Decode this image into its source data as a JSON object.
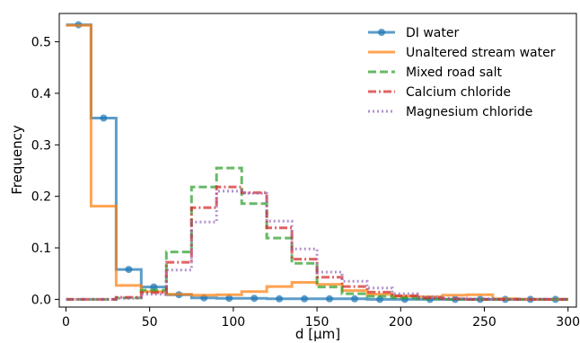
{
  "chart_data": {
    "type": "line",
    "title": "",
    "xlabel": "d [μm]",
    "ylabel": "Frequency",
    "xlim": [
      -4,
      305
    ],
    "ylim": [
      -0.015,
      0.555
    ],
    "xticks": [
      0,
      50,
      100,
      150,
      200,
      250,
      300
    ],
    "yticks": [
      0.0,
      0.1,
      0.2,
      0.3,
      0.4,
      0.5
    ],
    "grid": false,
    "legend_position": "top-right",
    "bin_edges": [
      0,
      15,
      30,
      45,
      60,
      75,
      90,
      105,
      120,
      135,
      150,
      165,
      180,
      195,
      210,
      225,
      240,
      255,
      270,
      285,
      300
    ],
    "bin_centers": [
      7.5,
      22.5,
      37.5,
      52.5,
      67.5,
      82.5,
      97.5,
      112.5,
      127.5,
      142.5,
      157.5,
      172.5,
      187.5,
      202.5,
      217.5,
      232.5,
      247.5,
      262.5,
      277.5,
      292.5
    ],
    "series": [
      {
        "name": "DI water",
        "color": "#1f77b4",
        "style": "solid-step-with-markers",
        "values": [
          0.533,
          0.352,
          0.058,
          0.024,
          0.009,
          0.003,
          0.002,
          0.002,
          0.001,
          0.001,
          0.001,
          0.001,
          0.0,
          0.0,
          0.0,
          0.0,
          0.0,
          0.0,
          0.0,
          0.0
        ]
      },
      {
        "name": "Unaltered stream water",
        "color": "#ff7f0e",
        "style": "solid-step",
        "values": [
          0.532,
          0.181,
          0.027,
          0.015,
          0.01,
          0.008,
          0.009,
          0.015,
          0.025,
          0.033,
          0.029,
          0.017,
          0.01,
          0.006,
          0.005,
          0.008,
          0.009,
          0.001,
          0.0,
          0.0
        ]
      },
      {
        "name": "Mixed road salt",
        "color": "#2ca02c",
        "style": "dashed-step",
        "values": [
          0.0,
          0.0,
          0.003,
          0.018,
          0.092,
          0.218,
          0.255,
          0.186,
          0.119,
          0.07,
          0.024,
          0.011,
          0.006,
          0.003,
          0.001,
          0.0,
          0.0,
          0.0,
          0.0,
          0.0
        ]
      },
      {
        "name": "Calcium chloride",
        "color": "#d62728",
        "style": "dashdot-step",
        "values": [
          0.0,
          0.0,
          0.004,
          0.013,
          0.072,
          0.178,
          0.218,
          0.207,
          0.139,
          0.078,
          0.043,
          0.025,
          0.014,
          0.007,
          0.003,
          0.001,
          0.0,
          0.0,
          0.0,
          0.0
        ]
      },
      {
        "name": "Magnesium chloride",
        "color": "#9467bd",
        "style": "dotted-step",
        "values": [
          0.0,
          0.0,
          0.002,
          0.01,
          0.057,
          0.15,
          0.21,
          0.206,
          0.152,
          0.098,
          0.053,
          0.035,
          0.022,
          0.011,
          0.005,
          0.002,
          0.001,
          0.0,
          0.0,
          0.0
        ]
      }
    ]
  }
}
